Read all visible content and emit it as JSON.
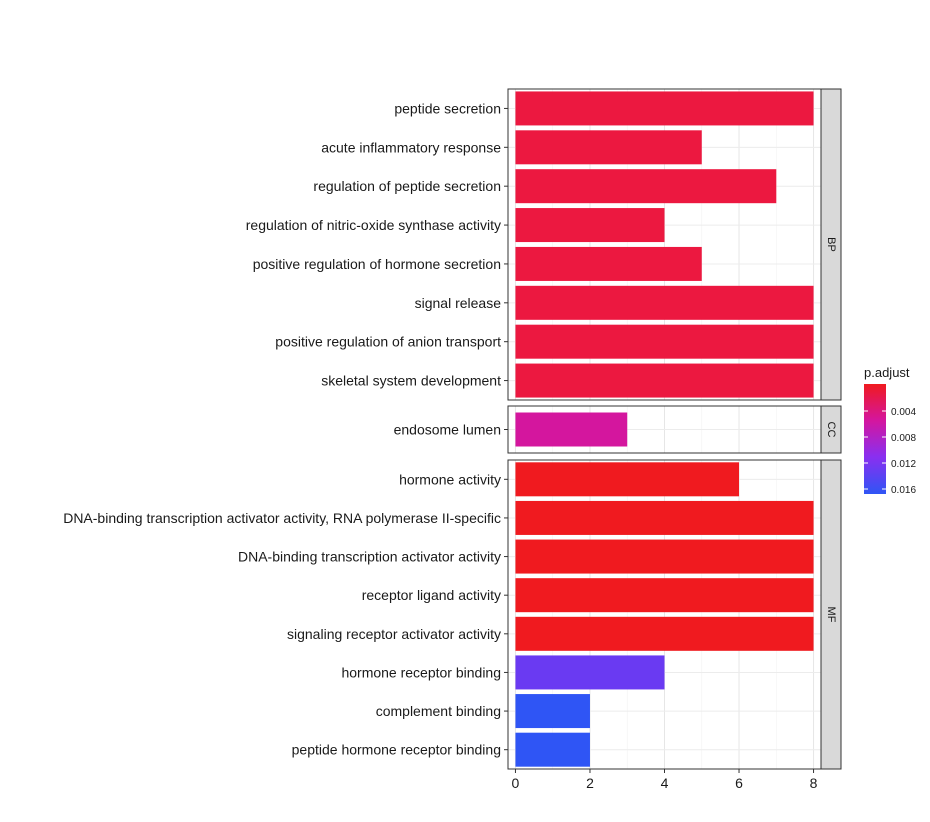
{
  "chart_data": {
    "type": "bar",
    "orientation": "horizontal",
    "x_ticks": [
      "0",
      "2",
      "4",
      "6",
      "8"
    ],
    "xlim": [
      -0.2,
      8.2
    ],
    "xlabel": "",
    "ylabel": "",
    "grid": true,
    "facets": [
      {
        "name": "BP",
        "categories": [
          "peptide secretion",
          "acute inflammatory response",
          "regulation of peptide secretion",
          "regulation of nitric-oxide synthase activity",
          "positive regulation of hormone secretion",
          "signal release",
          "positive regulation of anion transport",
          "skeletal system development"
        ],
        "values": [
          8,
          5,
          7,
          4,
          5,
          8,
          8,
          8
        ],
        "colors": [
          "#ec1840",
          "#ec1840",
          "#ec1840",
          "#ec1840",
          "#ec1840",
          "#ec1840",
          "#ec1840",
          "#ec1840"
        ]
      },
      {
        "name": "CC",
        "categories": [
          "endosome lumen"
        ],
        "values": [
          3
        ],
        "colors": [
          "#d4169e"
        ]
      },
      {
        "name": "MF",
        "categories": [
          "hormone activity",
          "DNA-binding transcription activator activity, RNA polymerase II-specific",
          "DNA-binding transcription activator activity",
          "receptor ligand activity",
          "signaling receptor activator activity",
          "hormone receptor binding",
          "complement binding",
          "peptide hormone receptor binding"
        ],
        "values": [
          6,
          8,
          8,
          8,
          8,
          4,
          2,
          2
        ],
        "colors": [
          "#f01a1f",
          "#f01a1f",
          "#f01a1f",
          "#f01a1f",
          "#f01a1f",
          "#6a3af2",
          "#2f55f5",
          "#2f55f5"
        ]
      }
    ],
    "legend": {
      "title": "p.adjust",
      "position": "right",
      "ticks": [
        "0.004",
        "0.008",
        "0.012",
        "0.016"
      ],
      "gradient_colors": [
        "#f01a1f",
        "#d4169e",
        "#8a2ff0",
        "#2f55f5"
      ]
    }
  }
}
